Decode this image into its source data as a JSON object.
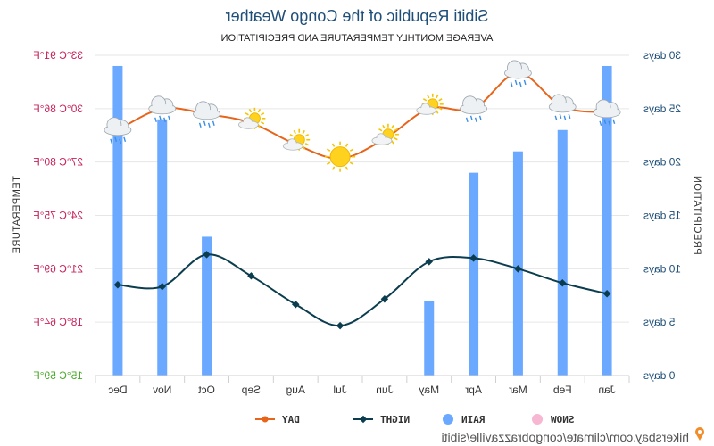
{
  "credit": "hikersbay.com/climate/congobrazzaville/sibiti",
  "chart_data": {
    "type": "bar+line",
    "title": "Sibiti Republic of the Congo Weather",
    "subtitle": "AVERAGE MONTHLY TEMPERATURE AND PRECIPITATION",
    "categories": [
      "Jan",
      "Feb",
      "Mar",
      "Apr",
      "May",
      "Jun",
      "Jul",
      "Aug",
      "Sep",
      "Oct",
      "Nov",
      "Dec"
    ],
    "left_axis": {
      "label": "PRECIPITATION",
      "ylim": [
        0,
        30
      ],
      "ticks": [
        "0 days",
        "5 days",
        "10 days",
        "15 days",
        "20 days",
        "25 days",
        "30 days"
      ]
    },
    "right_axis": {
      "label": "TEMPERATURE",
      "ylim": [
        15,
        33
      ],
      "ticks": [
        "15°C 59°F",
        "18°C 64°F",
        "21°C 69°F",
        "24°C 75°F",
        "27°C 80°F",
        "30°C 86°F",
        "33°C 91°F"
      ],
      "tick_colors": [
        "#4aaa2a",
        "#c8235a",
        "#c8235a",
        "#c8235a",
        "#c8235a",
        "#c8235a",
        "#c8235a"
      ]
    },
    "series": [
      {
        "name": "DAY",
        "type": "line",
        "axis": "right",
        "color": "#e8641b",
        "values": [
          29.8,
          30.1,
          32.0,
          30.0,
          30.0,
          28.3,
          27.2,
          28.0,
          29.2,
          29.7,
          30.0,
          28.8
        ]
      },
      {
        "name": "NIGHT",
        "type": "line",
        "axis": "right",
        "color": "#0b3d4f",
        "values": [
          19.6,
          20.2,
          21.0,
          21.6,
          21.4,
          19.3,
          17.8,
          19.0,
          20.6,
          21.8,
          20.0,
          20.1
        ]
      },
      {
        "name": "RAIN",
        "type": "bar",
        "axis": "left",
        "color": "#6aa9ff",
        "values": [
          29,
          23,
          21,
          19,
          7,
          0,
          0,
          0,
          0,
          13,
          24,
          29
        ]
      },
      {
        "name": "SNOW",
        "type": "bar",
        "axis": "left",
        "color": "#f7b6d2",
        "values": [
          0,
          0,
          0,
          0,
          0,
          0,
          0,
          0,
          0,
          0,
          0,
          0
        ]
      }
    ],
    "icons": [
      "rain-cloud-icon",
      "rain-cloud-icon",
      "rain-cloud-icon",
      "rain-cloud-icon",
      "sun-cloud-icon",
      "sun-cloud-icon",
      "sun-icon",
      "sun-cloud-icon",
      "sun-cloud-icon",
      "rain-cloud-icon",
      "rain-cloud-icon",
      "rain-cloud-icon"
    ],
    "legend": [
      "DAY",
      "NIGHT",
      "RAIN",
      "SNOW"
    ],
    "legend_position": "bottom",
    "grid": true
  }
}
